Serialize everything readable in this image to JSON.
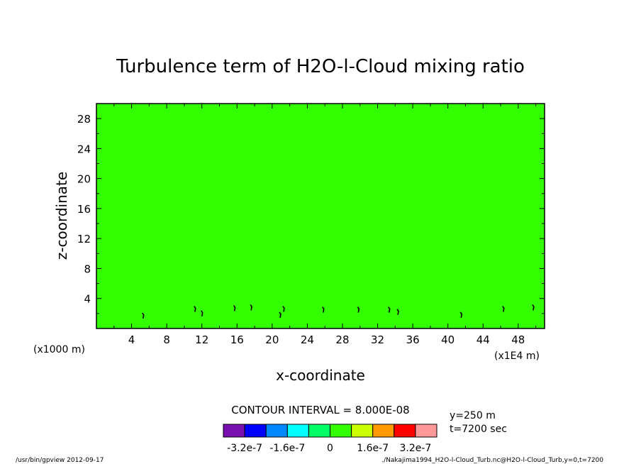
{
  "chart_data": {
    "type": "heatmap",
    "title": "Turbulence term of H2O-l-Cloud mixing ratio",
    "xlabel": "x-coordinate",
    "ylabel": "z-coordinate",
    "x_unit_left": "(x1000 m)",
    "x_unit_right": "(x1E4 m)",
    "xlim": [
      0,
      51
    ],
    "ylim": [
      0,
      30
    ],
    "x_ticks": [
      4,
      8,
      12,
      16,
      20,
      24,
      28,
      32,
      36,
      40,
      44,
      48
    ],
    "y_ticks": [
      4,
      8,
      12,
      16,
      20,
      24,
      28
    ],
    "x_tick_labels": [
      "4",
      "8",
      "12",
      "16",
      "20",
      "24",
      "28",
      "32",
      "36",
      "40",
      "44",
      "48"
    ],
    "y_tick_labels": [
      "4",
      "8",
      "12",
      "16",
      "20",
      "24",
      "28"
    ],
    "background_level": "0 to 8.000E-08",
    "background_color": "#33ff00",
    "features": [
      {
        "x": 5.3,
        "z": 1.7
      },
      {
        "x": 11.2,
        "z": 2.6
      },
      {
        "x": 12.0,
        "z": 2.0
      },
      {
        "x": 15.7,
        "z": 2.7
      },
      {
        "x": 17.6,
        "z": 2.8
      },
      {
        "x": 20.9,
        "z": 1.8
      },
      {
        "x": 21.3,
        "z": 2.6
      },
      {
        "x": 25.8,
        "z": 2.5
      },
      {
        "x": 29.8,
        "z": 2.5
      },
      {
        "x": 33.3,
        "z": 2.5
      },
      {
        "x": 34.3,
        "z": 2.2
      },
      {
        "x": 41.5,
        "z": 1.8
      },
      {
        "x": 46.3,
        "z": 2.6
      },
      {
        "x": 49.7,
        "z": 2.8
      }
    ],
    "contour_interval_text": "CONTOUR INTERVAL = 8.000E-08",
    "colorbar": {
      "colors": [
        "#7a0fb0",
        "#0000ff",
        "#0088ff",
        "#00ffff",
        "#00ff66",
        "#33ff00",
        "#ccff00",
        "#ff9900",
        "#ff0000",
        "#ff9999"
      ],
      "labels": [
        "-3.2e-7",
        "-1.6e-7",
        "0",
        "1.6e-7",
        "3.2e-7"
      ]
    },
    "info": [
      "y=250  m",
      "t=7200 sec"
    ]
  },
  "footer": {
    "left": "/usr/bin/gpview  2012-09-17",
    "right": "./Nakajima1994_H2O-l-Cloud_Turb.nc@H2O-l-Cloud_Turb,y=0,t=7200"
  }
}
